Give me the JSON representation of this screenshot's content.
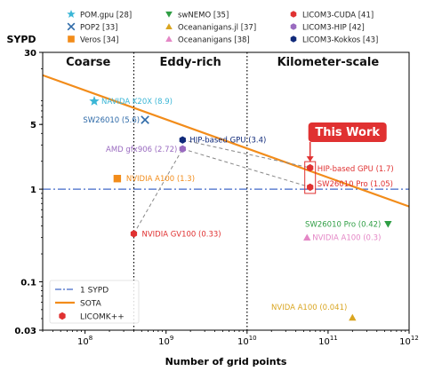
{
  "chart_data": {
    "type": "scatter",
    "x_scale": "log",
    "y_scale": "log",
    "xlabel": "Number of grid points",
    "ylabel": "SYPD",
    "xlim": [
      30000000,
      1000000000000
    ],
    "ylim": [
      0.03,
      30
    ],
    "x_ticks": [
      {
        "value": 100000000,
        "label": "10^8"
      },
      {
        "value": 1000000000,
        "label": "10^9"
      },
      {
        "value": 10000000000,
        "label": "10^10"
      },
      {
        "value": 100000000000,
        "label": "10^11"
      },
      {
        "value": 1000000000000,
        "label": "10^12"
      }
    ],
    "y_ticks": [
      {
        "value": 0.03,
        "label": "0.03"
      },
      {
        "value": 0.1,
        "label": "0.1"
      },
      {
        "value": 1,
        "label": "1"
      },
      {
        "value": 5,
        "label": "5"
      },
      {
        "value": 30,
        "label": "30"
      }
    ],
    "regions": [
      {
        "label": "Coarse",
        "x_start": 30000000,
        "x_end": 400000000
      },
      {
        "label": "Eddy-rich",
        "x_start": 400000000,
        "x_end": 10000000000
      },
      {
        "label": "Kilometer-scale",
        "x_start": 10000000000,
        "x_end": 1000000000000
      }
    ],
    "region_boundaries": [
      400000000,
      10000000000
    ],
    "reference_lines": [
      {
        "name": "1 SYPD",
        "y": 1,
        "color": "#4169c8"
      },
      {
        "name": "SOTA",
        "points": [
          [
            30000000,
            17
          ],
          [
            1000000000000,
            0.65
          ]
        ],
        "color": "#f28c1a"
      }
    ],
    "series": [
      {
        "name": "POM.gpu [28]",
        "marker": "star",
        "color": "#3bb6d6",
        "points": [
          {
            "x": 130000000,
            "y": 8.9,
            "label": "NAVIDA K20X (8.9)"
          }
        ]
      },
      {
        "name": "POP2 [33]",
        "marker": "x",
        "color": "#2e6aa8",
        "points": [
          {
            "x": 550000000,
            "y": 5.6,
            "label": "SW26010 (5.6)"
          }
        ]
      },
      {
        "name": "Veros [34]",
        "marker": "square",
        "color": "#f28c1a",
        "points": [
          {
            "x": 250000000,
            "y": 1.3,
            "label": "NVIDIA A100 (1.3)"
          }
        ]
      },
      {
        "name": "swNEMO [35]",
        "marker": "triangle-down",
        "color": "#2f9e44",
        "points": [
          {
            "x": 550000000000,
            "y": 0.42,
            "label": "SW26010 Pro (0.42)"
          }
        ]
      },
      {
        "name": "Oceananigans.jl [37]",
        "marker": "triangle-up",
        "color": "#d9a520",
        "points": [
          {
            "x": 200000000000,
            "y": 0.041,
            "label": "NVIDA A100 (0.041)"
          }
        ]
      },
      {
        "name": "Oceananigans [38]",
        "marker": "triangle-up",
        "color": "#e487c6",
        "points": [
          {
            "x": 55000000000,
            "y": 0.3,
            "label": "NVIDIA A100 (0.3)"
          }
        ]
      },
      {
        "name": "LICOM3-CUDA [41]",
        "marker": "hexagon",
        "color": "#e03131",
        "points": [
          {
            "x": 400000000,
            "y": 0.33,
            "label": "NVIDIA GV100 (0.33)"
          }
        ]
      },
      {
        "name": "LICOM3-HIP [42]",
        "marker": "hexagon",
        "color": "#9a6bc0",
        "points": [
          {
            "x": 1600000000,
            "y": 2.72,
            "label": "AMD gfx906 (2.72)"
          }
        ]
      },
      {
        "name": "LICOM3-Kokkos [43]",
        "marker": "hexagon",
        "color": "#102a7a",
        "points": [
          {
            "x": 1600000000,
            "y": 3.4,
            "label": "HIP-based GPU (3.4)"
          }
        ]
      },
      {
        "name": "LICOMK++",
        "marker": "hexagon",
        "color": "#e03131",
        "points": [
          {
            "x": 60000000000,
            "y": 1.7,
            "label": "HIP-based GPU (1.7)"
          },
          {
            "x": 60000000000,
            "y": 1.05,
            "label": "SW26010 Pro (1.05)"
          }
        ]
      }
    ],
    "connectors": [
      {
        "from": [
          400000000,
          0.33
        ],
        "to": [
          1600000000,
          2.72
        ]
      },
      {
        "from": [
          1600000000,
          3.4
        ],
        "to": [
          60000000000,
          1.7
        ]
      },
      {
        "from": [
          1600000000,
          2.72
        ],
        "to": [
          60000000000,
          1.05
        ]
      }
    ],
    "callout": {
      "text": "This Work",
      "x": 60000000000,
      "y_low": 1.05,
      "y_high": 1.7,
      "color": "#e03131"
    },
    "legend_bottom": [
      {
        "name": "1 SYPD",
        "style": "dashdot",
        "color": "#4169c8"
      },
      {
        "name": "SOTA",
        "style": "solid",
        "color": "#f28c1a"
      },
      {
        "name": "LICOMK++",
        "style": "marker",
        "marker": "hexagon",
        "color": "#e03131"
      }
    ],
    "legend_top": "above-plot, three columns",
    "grid": false
  }
}
